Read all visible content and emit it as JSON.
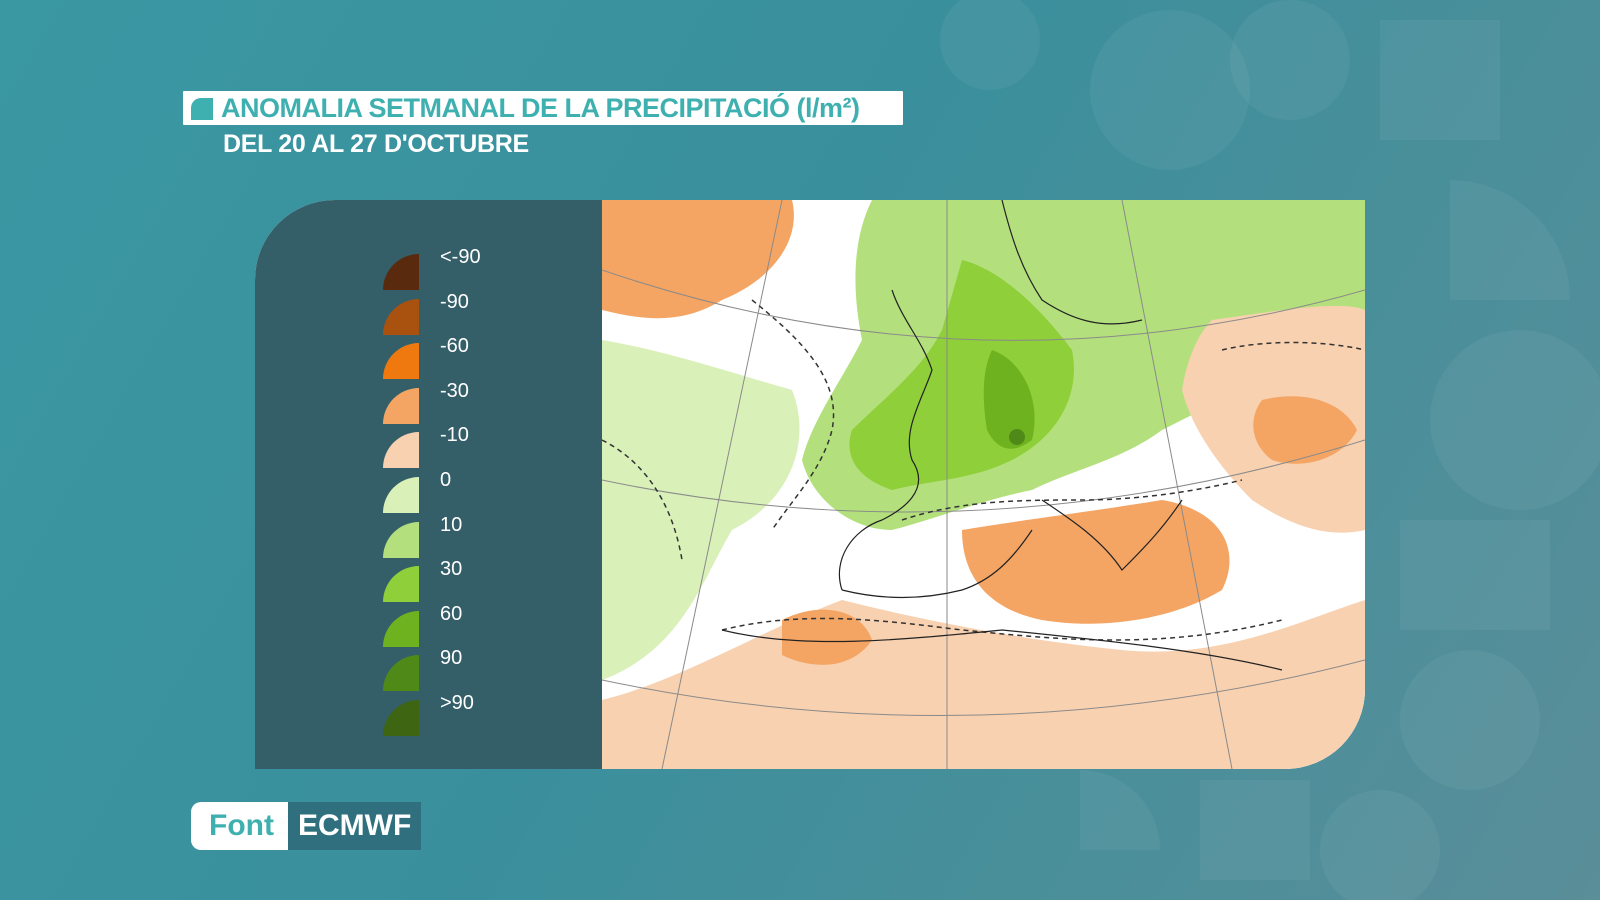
{
  "title": "ANOMALIA SETMANAL DE LA PRECIPITACIÓ (l/m²)",
  "subtitle": "DEL 20 AL 27 D'OCTUBRE",
  "legend": {
    "items": [
      {
        "label": "<-90",
        "color": "#5a2a0e"
      },
      {
        "label": "-90",
        "color": "#a9520f"
      },
      {
        "label": "-60",
        "color": "#f0790f"
      },
      {
        "label": "-30",
        "color": "#f4a564"
      },
      {
        "label": "-10",
        "color": "#f8d1b0"
      },
      {
        "label": "0",
        "color": "#d9f0b8"
      },
      {
        "label": "10",
        "color": "#b3e07d"
      },
      {
        "label": "30",
        "color": "#8fcf3a"
      },
      {
        "label": "60",
        "color": "#6fb21f"
      },
      {
        "label": "90",
        "color": "#4f8a18"
      },
      {
        "label": ">90",
        "color": "#3d6512"
      }
    ]
  },
  "source": {
    "prefix": "Font",
    "name": "ECMWF"
  },
  "colors": {
    "accent": "#3fb0b0",
    "panel": "#345f68"
  }
}
